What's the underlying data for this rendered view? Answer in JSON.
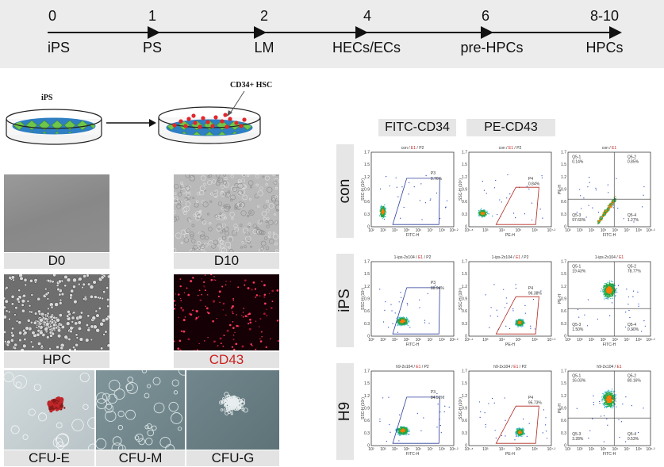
{
  "timeline": {
    "points": [
      {
        "day": "0",
        "stage": "iPS"
      },
      {
        "day": "1",
        "stage": "PS"
      },
      {
        "day": "2",
        "stage": "LM"
      },
      {
        "day": "4",
        "stage": "HECs/ECs"
      },
      {
        "day": "6",
        "stage": "pre-HPCs"
      },
      {
        "day": "8-10",
        "stage": "HPCs"
      }
    ]
  },
  "schematic": {
    "left_label": "iPS",
    "right_label": "CD34+ HSC"
  },
  "micrographs": {
    "d0": "D0",
    "d10": "D10",
    "hpc": "HPC",
    "cd43": "CD43",
    "cfu_e": "CFU-E",
    "cfu_m": "CFU-M",
    "cfu_g": "CFU-G"
  },
  "colors": {
    "cd43_label": "#cc1f1f",
    "gate_blue": "#2a3d9a",
    "gate_red": "#b3261e"
  },
  "flow": {
    "col_headers": [
      "FITC-CD34",
      "PE-CD43"
    ],
    "rows": [
      {
        "label": "con",
        "fitc": {
          "title_prefix": "con / ",
          "e1": "E1",
          "p2": " / P2",
          "gate": "P3",
          "pct": "0.76%",
          "xlabel": "FITC-H",
          "ylabel": "SSC-H (10⁵)"
        },
        "pe": {
          "title_prefix": "con / ",
          "e1": "E1",
          "p2": " / P2",
          "gate": "P4",
          "pct": "0.84%",
          "xlabel": "PE-H",
          "ylabel": "SSC-H (10⁵)"
        },
        "quad": {
          "title_prefix": "con / ",
          "e1": "E1",
          "q1": "Q5-1",
          "q1v": "0.14%",
          "q2": "Q5-2",
          "q2v": "0.85%",
          "q3": "Q5-3",
          "q3v": "97.60%",
          "q4": "Q5-4",
          "q4v": "1.27%",
          "xlabel": "FITC-H",
          "ylabel": "PE-H"
        }
      },
      {
        "label": "iPS",
        "fitc": {
          "title_prefix": "1-ips-2x104 / ",
          "e1": "E1",
          "p2": " / P2",
          "gate": "P3",
          "pct": "88.94%",
          "xlabel": "FITC-H",
          "ylabel": "SSC-H (10⁵)"
        },
        "pe": {
          "title_prefix": "1-ips-2x104 / ",
          "e1": "E1",
          "p2": " / P2",
          "gate": "P4",
          "pct": "96.38%",
          "xlabel": "PE-H",
          "ylabel": "SSC-H (10⁵)"
        },
        "quad": {
          "title_prefix": "1-ips-2x104 / ",
          "e1": "E1",
          "q1": "Q5-1",
          "q1v": "19.43%",
          "q2": "Q5-2",
          "q2v": "78.77%",
          "q3": "Q5-3",
          "q3v": "1.50%",
          "q4": "Q5-4",
          "q4v": "0.30%",
          "xlabel": "FITC-H",
          "ylabel": "PE-H"
        }
      },
      {
        "label": "H9",
        "fitc": {
          "title_prefix": "h9-2x104 / ",
          "e1": "E1",
          "p2": " / P2",
          "gate": "P3",
          "pct": "84.51%",
          "xlabel": "FITC-H",
          "ylabel": "SSC-H (10⁵)"
        },
        "pe": {
          "title_prefix": "h9-2x104 / ",
          "e1": "E1",
          "p2": " / P2",
          "gate": "P4",
          "pct": "95.73%",
          "xlabel": "PE-H",
          "ylabel": "SSC-H (10⁵)"
        },
        "quad": {
          "title_prefix": "h9-2x104 / ",
          "e1": "E1",
          "q1": "Q5-1",
          "q1v": "16.03%",
          "q2": "Q5-2",
          "q2v": "80.16%",
          "q3": "Q5-3",
          "q3v": "3.28%",
          "q4": "Q5-4",
          "q4v": "0.53%",
          "xlabel": "FITC-H",
          "ylabel": "PE-H"
        }
      }
    ],
    "x_ticks": [
      "10²",
      "10³",
      "10⁴",
      "10⁵",
      "10⁶",
      "10⁷",
      "10⁸",
      "10⁸·²"
    ],
    "pe_x_ticks": [
      "10¹·⁸",
      "10³",
      "10⁴",
      "10⁵",
      "10⁶",
      "10⁷·²"
    ],
    "y_ticks": [
      "0",
      "0.3",
      "0.6",
      "0.9",
      "1.2",
      "1.5",
      "1.7"
    ]
  }
}
